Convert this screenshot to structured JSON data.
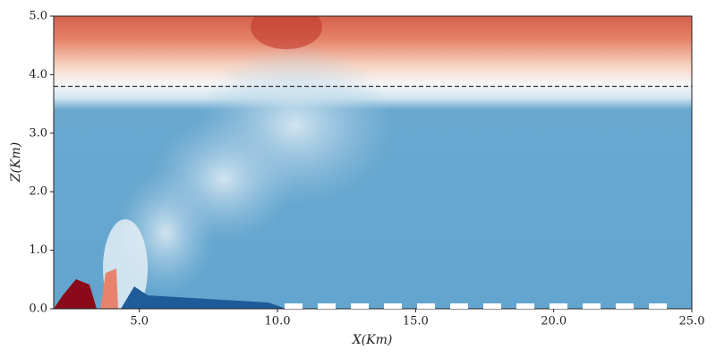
{
  "chart_data": {
    "type": "field",
    "xlabel": "X(Km)",
    "ylabel": "Z(Km)",
    "xlim": [
      1.9,
      25
    ],
    "ylim": [
      0,
      5
    ],
    "xticks": [
      {
        "value": 5,
        "label": "5.0"
      },
      {
        "value": 10,
        "label": "10.0"
      },
      {
        "value": 15,
        "label": "15.0"
      },
      {
        "value": 20,
        "label": "20.0"
      },
      {
        "value": 25,
        "label": "25.0"
      }
    ],
    "yticks": [
      {
        "value": 0,
        "label": "0.0"
      },
      {
        "value": 1,
        "label": "1.0"
      },
      {
        "value": 2,
        "label": "2.0"
      },
      {
        "value": 3,
        "label": "3.0"
      },
      {
        "value": 4,
        "label": "4.0"
      },
      {
        "value": 5,
        "label": "5.0"
      }
    ],
    "hline": 3.8,
    "hline_color": "#333333"
  }
}
